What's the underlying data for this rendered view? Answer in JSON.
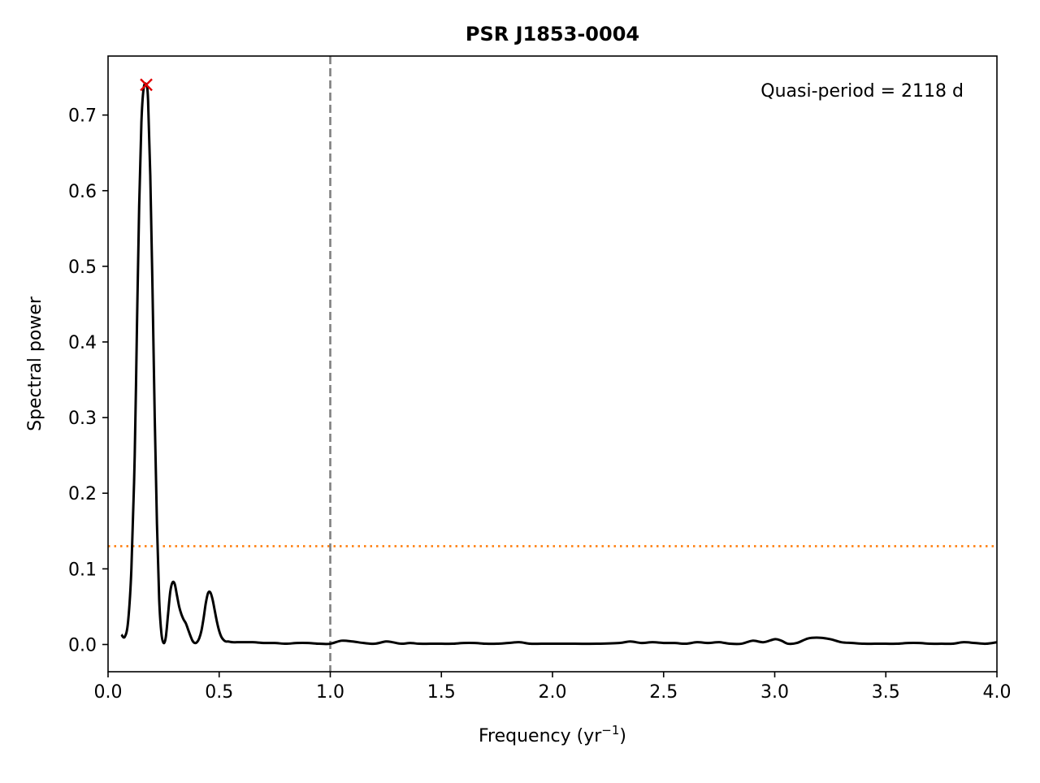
{
  "chart_data": {
    "type": "line",
    "title": "PSR J1853-0004",
    "xlabel_main": "Frequency (yr",
    "xlabel_sup": "−1",
    "xlabel_close": ")",
    "ylabel": "Spectral power",
    "xlim": [
      0.0,
      4.0
    ],
    "ylim": [
      -0.036,
      0.778
    ],
    "xticks": [
      0.0,
      0.5,
      1.0,
      1.5,
      2.0,
      2.5,
      3.0,
      3.5,
      4.0
    ],
    "xtick_labels": [
      "0.0",
      "0.5",
      "1.0",
      "1.5",
      "2.0",
      "2.5",
      "3.0",
      "3.5",
      "4.0"
    ],
    "yticks": [
      0.0,
      0.1,
      0.2,
      0.3,
      0.4,
      0.5,
      0.6,
      0.7
    ],
    "ytick_labels": [
      "0.0",
      "0.1",
      "0.2",
      "0.3",
      "0.4",
      "0.5",
      "0.6",
      "0.7"
    ],
    "grid": false,
    "annotation": "Quasi-period = 2118 d",
    "series": [
      {
        "color": "#000000",
        "x": [
          0.06,
          0.075,
          0.09,
          0.105,
          0.12,
          0.13,
          0.14,
          0.15,
          0.16,
          0.172,
          0.18,
          0.19,
          0.2,
          0.21,
          0.22,
          0.23,
          0.24,
          0.25,
          0.26,
          0.27,
          0.28,
          0.29,
          0.3,
          0.31,
          0.32,
          0.33,
          0.34,
          0.35,
          0.36,
          0.37,
          0.38,
          0.39,
          0.4,
          0.41,
          0.42,
          0.43,
          0.44,
          0.45,
          0.46,
          0.47,
          0.48,
          0.49,
          0.5,
          0.51,
          0.52,
          0.53,
          0.54,
          0.55,
          0.56,
          0.58,
          0.6,
          0.65,
          0.7,
          0.75,
          0.8,
          0.85,
          0.9,
          0.95,
          1.0,
          1.05,
          1.1,
          1.15,
          1.2,
          1.25,
          1.28,
          1.32,
          1.36,
          1.4,
          1.45,
          1.5,
          1.55,
          1.6,
          1.65,
          1.7,
          1.75,
          1.8,
          1.85,
          1.9,
          1.95,
          2.0,
          2.1,
          2.2,
          2.3,
          2.35,
          2.4,
          2.45,
          2.5,
          2.55,
          2.6,
          2.65,
          2.7,
          2.75,
          2.8,
          2.85,
          2.9,
          2.95,
          3.0,
          3.03,
          3.06,
          3.1,
          3.15,
          3.2,
          3.25,
          3.3,
          3.35,
          3.4,
          3.45,
          3.5,
          3.55,
          3.6,
          3.65,
          3.7,
          3.75,
          3.8,
          3.85,
          3.9,
          3.95,
          4.0
        ],
        "values": [
          0.013,
          0.01,
          0.03,
          0.1,
          0.25,
          0.42,
          0.58,
          0.69,
          0.735,
          0.74,
          0.72,
          0.62,
          0.47,
          0.3,
          0.16,
          0.06,
          0.015,
          0.002,
          0.01,
          0.04,
          0.07,
          0.082,
          0.08,
          0.065,
          0.05,
          0.04,
          0.033,
          0.028,
          0.02,
          0.012,
          0.005,
          0.002,
          0.003,
          0.008,
          0.018,
          0.035,
          0.055,
          0.068,
          0.069,
          0.06,
          0.045,
          0.03,
          0.018,
          0.01,
          0.006,
          0.004,
          0.004,
          0.0035,
          0.003,
          0.003,
          0.003,
          0.003,
          0.002,
          0.002,
          0.001,
          0.002,
          0.002,
          0.001,
          0.001,
          0.005,
          0.004,
          0.002,
          0.001,
          0.004,
          0.003,
          0.001,
          0.002,
          0.001,
          0.001,
          0.001,
          0.001,
          0.002,
          0.002,
          0.001,
          0.001,
          0.002,
          0.003,
          0.001,
          0.001,
          0.001,
          0.001,
          0.001,
          0.002,
          0.004,
          0.002,
          0.003,
          0.002,
          0.002,
          0.001,
          0.003,
          0.002,
          0.003,
          0.001,
          0.001,
          0.005,
          0.003,
          0.007,
          0.005,
          0.001,
          0.002,
          0.008,
          0.009,
          0.007,
          0.003,
          0.002,
          0.001,
          0.001,
          0.001,
          0.001,
          0.002,
          0.002,
          0.001,
          0.001,
          0.001,
          0.003,
          0.002,
          0.001,
          0.003
        ]
      }
    ],
    "peak_marker": {
      "x": 0.172,
      "y": 0.74,
      "color": "#e00000"
    },
    "vertical_line": {
      "x": 1.0,
      "color": "#808080",
      "style": "dashed"
    },
    "horizontal_line": {
      "y": 0.13,
      "color": "#ff7f0e",
      "style": "dotted"
    }
  }
}
